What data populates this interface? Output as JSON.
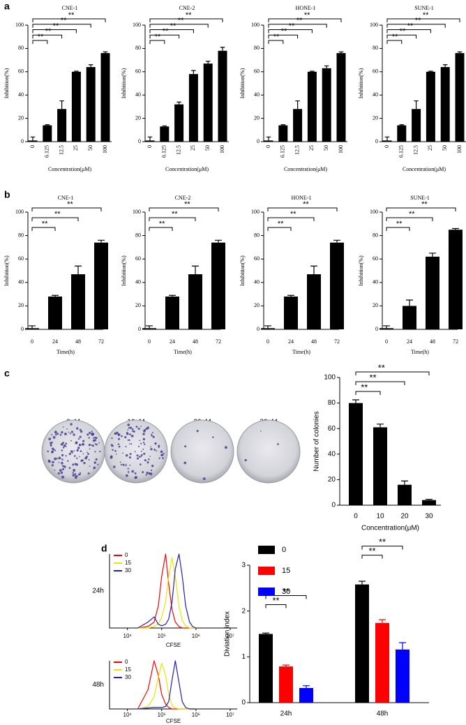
{
  "panel_labels": [
    "a",
    "b",
    "c",
    "d"
  ],
  "plates": {
    "labels": [
      "0μM",
      "10μM",
      "20μM",
      "30μM"
    ]
  },
  "chart_data": [
    {
      "type": "bar",
      "title": "CNE-1",
      "categories": [
        "0",
        "6.125",
        "12.5",
        "25",
        "50",
        "100"
      ],
      "values": [
        1,
        14,
        28,
        60,
        64,
        76
      ],
      "errors": [
        3,
        0.5,
        7,
        0.5,
        2,
        1
      ],
      "color": "#000000",
      "ylim": [
        0,
        100
      ],
      "yticks": [
        0,
        20,
        40,
        60,
        80,
        100
      ],
      "xlabel": "Concentration(μM)",
      "ylabel": "Inhibition(%)",
      "brackets": [
        {
          "pair": [
            0,
            1
          ],
          "label": "**"
        },
        {
          "pair": [
            0,
            2
          ],
          "label": "**"
        },
        {
          "pair": [
            0,
            3
          ],
          "label": "**"
        },
        {
          "pair": [
            0,
            4
          ],
          "label": "**"
        },
        {
          "pair": [
            0,
            5
          ],
          "label": "**"
        }
      ]
    },
    {
      "type": "bar",
      "title": "CNE-2",
      "categories": [
        "0",
        "6.125",
        "12.5",
        "25",
        "50",
        "100"
      ],
      "values": [
        1,
        13,
        32,
        58,
        67,
        78
      ],
      "errors": [
        3,
        0.5,
        2,
        3,
        2,
        3
      ],
      "color": "#000000",
      "ylim": [
        0,
        100
      ],
      "yticks": [
        0,
        20,
        40,
        60,
        80,
        100
      ],
      "xlabel": "Concentration(μM)",
      "ylabel": "Inhibition(%)",
      "brackets": [
        {
          "pair": [
            0,
            1
          ],
          "label": "**"
        },
        {
          "pair": [
            0,
            2
          ],
          "label": "**"
        },
        {
          "pair": [
            0,
            3
          ],
          "label": "**"
        },
        {
          "pair": [
            0,
            4
          ],
          "label": "**"
        },
        {
          "pair": [
            0,
            5
          ],
          "label": "**"
        }
      ]
    },
    {
      "type": "bar",
      "title": "HONE-1",
      "categories": [
        "0",
        "6.125",
        "12.5",
        "25",
        "50",
        "100"
      ],
      "values": [
        1,
        14,
        28,
        60,
        63,
        76
      ],
      "errors": [
        3,
        0.5,
        7,
        0.5,
        2,
        1
      ],
      "color": "#000000",
      "ylim": [
        0,
        100
      ],
      "yticks": [
        0,
        20,
        40,
        60,
        80,
        100
      ],
      "xlabel": "Concentration(μM)",
      "ylabel": "Inhibition(%)",
      "brackets": [
        {
          "pair": [
            0,
            1
          ],
          "label": "**"
        },
        {
          "pair": [
            0,
            2
          ],
          "label": "**"
        },
        {
          "pair": [
            0,
            3
          ],
          "label": "**"
        },
        {
          "pair": [
            0,
            4
          ],
          "label": "**"
        },
        {
          "pair": [
            0,
            5
          ],
          "label": "**"
        }
      ]
    },
    {
      "type": "bar",
      "title": "SUNE-1",
      "categories": [
        "0",
        "6.125",
        "12.5",
        "25",
        "50",
        "100"
      ],
      "values": [
        1,
        14,
        28,
        60,
        64,
        76
      ],
      "errors": [
        3,
        0.5,
        7,
        0.5,
        2,
        1
      ],
      "color": "#000000",
      "ylim": [
        0,
        100
      ],
      "yticks": [
        0,
        20,
        40,
        60,
        80,
        100
      ],
      "xlabel": "Concentration(μM)",
      "ylabel": "Inhibition(%)",
      "brackets": [
        {
          "pair": [
            0,
            1
          ],
          "label": "**"
        },
        {
          "pair": [
            0,
            2
          ],
          "label": "**"
        },
        {
          "pair": [
            0,
            3
          ],
          "label": "**"
        },
        {
          "pair": [
            0,
            4
          ],
          "label": "**"
        },
        {
          "pair": [
            0,
            5
          ],
          "label": "**"
        }
      ]
    },
    {
      "type": "bar",
      "title": "CNE-1",
      "categories": [
        "0",
        "24",
        "48",
        "72"
      ],
      "values": [
        1,
        28,
        47,
        74
      ],
      "errors": [
        2,
        1,
        7,
        2
      ],
      "color": "#000000",
      "ylim": [
        0,
        100
      ],
      "yticks": [
        0,
        20,
        40,
        60,
        80,
        100
      ],
      "xlabel": "Time(h)",
      "ylabel": "Inhibition(%)",
      "brackets": [
        {
          "pair": [
            0,
            1
          ],
          "label": "**"
        },
        {
          "pair": [
            0,
            2
          ],
          "label": "**"
        },
        {
          "pair": [
            0,
            3
          ],
          "label": "**"
        }
      ]
    },
    {
      "type": "bar",
      "title": "CNE-2",
      "categories": [
        "0",
        "24",
        "48",
        "72"
      ],
      "values": [
        1,
        28,
        47,
        74
      ],
      "errors": [
        2,
        1,
        7,
        2
      ],
      "color": "#000000",
      "ylim": [
        0,
        100
      ],
      "yticks": [
        0,
        20,
        40,
        60,
        80,
        100
      ],
      "xlabel": "Time(h)",
      "ylabel": "Inhibition(%)",
      "brackets": [
        {
          "pair": [
            0,
            1
          ],
          "label": "**"
        },
        {
          "pair": [
            0,
            2
          ],
          "label": "**"
        },
        {
          "pair": [
            0,
            3
          ],
          "label": "**"
        }
      ]
    },
    {
      "type": "bar",
      "title": "HONE-1",
      "categories": [
        "0",
        "24",
        "48",
        "72"
      ],
      "values": [
        1,
        28,
        47,
        74
      ],
      "errors": [
        2,
        1,
        7,
        2
      ],
      "color": "#000000",
      "ylim": [
        0,
        100
      ],
      "yticks": [
        0,
        20,
        40,
        60,
        80,
        100
      ],
      "xlabel": "Time(h)",
      "ylabel": "Inhibition(%)",
      "brackets": [
        {
          "pair": [
            0,
            1
          ],
          "label": "**"
        },
        {
          "pair": [
            0,
            2
          ],
          "label": "**"
        },
        {
          "pair": [
            0,
            3
          ],
          "label": "**"
        }
      ]
    },
    {
      "type": "bar",
      "title": "SUNE-1",
      "categories": [
        "0",
        "24",
        "48",
        "72"
      ],
      "values": [
        1,
        20,
        62,
        85
      ],
      "errors": [
        2,
        5,
        3,
        1
      ],
      "color": "#000000",
      "ylim": [
        0,
        100
      ],
      "yticks": [
        0,
        20,
        40,
        60,
        80,
        100
      ],
      "xlabel": "Time(h)",
      "ylabel": "Inhibition(%)",
      "brackets": [
        {
          "pair": [
            0,
            1
          ],
          "label": "**"
        },
        {
          "pair": [
            0,
            2
          ],
          "label": "**"
        },
        {
          "pair": [
            0,
            3
          ],
          "label": "**"
        }
      ]
    },
    {
      "type": "bar",
      "categories": [
        "0",
        "10",
        "20",
        "30"
      ],
      "values": [
        80,
        61,
        16,
        4
      ],
      "errors": [
        2.5,
        2.5,
        3,
        0.6
      ],
      "color": "#000000",
      "ylim": [
        0,
        100
      ],
      "yticks": [
        0,
        20,
        40,
        60,
        80,
        100
      ],
      "xlabel": "Concentration(μM)",
      "ylabel": "Number of colonies",
      "brackets": [
        {
          "pair": [
            0,
            1
          ],
          "label": "**"
        },
        {
          "pair": [
            0,
            2
          ],
          "label": "**"
        },
        {
          "pair": [
            0,
            3
          ],
          "label": "**"
        }
      ]
    },
    {
      "type": "line",
      "title": "24h",
      "xlabel": "CFSE",
      "log_x": true,
      "legend": "upper left",
      "x": [
        20000,
        40000,
        60000,
        80000,
        100000,
        130000,
        160000,
        200000,
        250000,
        320000,
        400000,
        500000,
        650000,
        800000,
        1000000
      ],
      "series": [
        {
          "name": "0",
          "color": "#ff0000",
          "values": [
            0,
            2,
            8,
            30,
            70,
            100,
            60,
            25,
            8,
            2,
            0,
            0,
            0,
            0,
            0
          ]
        },
        {
          "name": "15",
          "color": "#e6e600",
          "values": [
            0,
            0,
            2,
            6,
            15,
            35,
            70,
            95,
            70,
            30,
            10,
            3,
            0,
            0,
            0
          ]
        },
        {
          "name": "30",
          "color": "#1f1fbf",
          "values": [
            0,
            8,
            15,
            5,
            3,
            5,
            12,
            35,
            80,
            100,
            70,
            30,
            8,
            2,
            0
          ]
        }
      ],
      "xlim": [
        3000,
        16000000
      ],
      "ylim": [
        0,
        100
      ],
      "xticks": [
        {
          "value": 10000,
          "label": "10⁴"
        },
        {
          "value": 100000,
          "label": "10⁵"
        },
        {
          "value": 1000000,
          "label": "10⁶"
        },
        {
          "value": 10000000,
          "label": "10⁷"
        }
      ]
    },
    {
      "type": "line",
      "title": "48h",
      "xlabel": "CFSE",
      "log_x": true,
      "legend": "upper left",
      "x": [
        20000,
        40000,
        60000,
        80000,
        100000,
        130000,
        160000,
        200000,
        250000,
        320000,
        400000,
        500000,
        650000,
        800000,
        1000000
      ],
      "series": [
        {
          "name": "0",
          "color": "#ff0000",
          "values": [
            0,
            40,
            100,
            70,
            30,
            10,
            3,
            0,
            0,
            0,
            0,
            0,
            0,
            0,
            0
          ]
        },
        {
          "name": "15",
          "color": "#e6e600",
          "values": [
            0,
            5,
            25,
            65,
            95,
            70,
            30,
            8,
            2,
            0,
            0,
            0,
            0,
            0,
            0
          ]
        },
        {
          "name": "30",
          "color": "#1f1fbf",
          "values": [
            0,
            2,
            3,
            3,
            3,
            5,
            15,
            60,
            100,
            55,
            15,
            3,
            0,
            0,
            0
          ]
        }
      ],
      "xlim": [
        3000,
        16000000
      ],
      "ylim": [
        0,
        100
      ],
      "xticks": [
        {
          "value": 10000,
          "label": "10⁴"
        },
        {
          "value": 100000,
          "label": "10⁵"
        },
        {
          "value": 1000000,
          "label": "10⁶"
        },
        {
          "value": 10000000,
          "label": "10⁷"
        }
      ]
    },
    {
      "type": "bar",
      "categories": [
        "24h",
        "48h"
      ],
      "legend": "upper left",
      "series": [
        {
          "name": "0",
          "color": "#000000",
          "values": [
            1.5,
            2.58
          ],
          "errors": [
            0.02,
            0.07
          ]
        },
        {
          "name": "15",
          "color": "#ff0000",
          "values": [
            0.79,
            1.74
          ],
          "errors": [
            0.03,
            0.07
          ]
        },
        {
          "name": "30",
          "color": "#0000ff",
          "values": [
            0.32,
            1.16
          ],
          "errors": [
            0.05,
            0.15
          ]
        }
      ],
      "ylim": [
        0,
        3
      ],
      "yticks": [
        0,
        1,
        2,
        3
      ],
      "ylabel": "Diviation index",
      "brackets": [
        {
          "group": 0,
          "pair": [
            0,
            1
          ],
          "label": "**"
        },
        {
          "group": 0,
          "pair": [
            0,
            2
          ],
          "label": "**"
        },
        {
          "group": 1,
          "pair": [
            0,
            1
          ],
          "label": "**"
        },
        {
          "group": 1,
          "pair": [
            0,
            2
          ],
          "label": "**"
        }
      ]
    }
  ]
}
